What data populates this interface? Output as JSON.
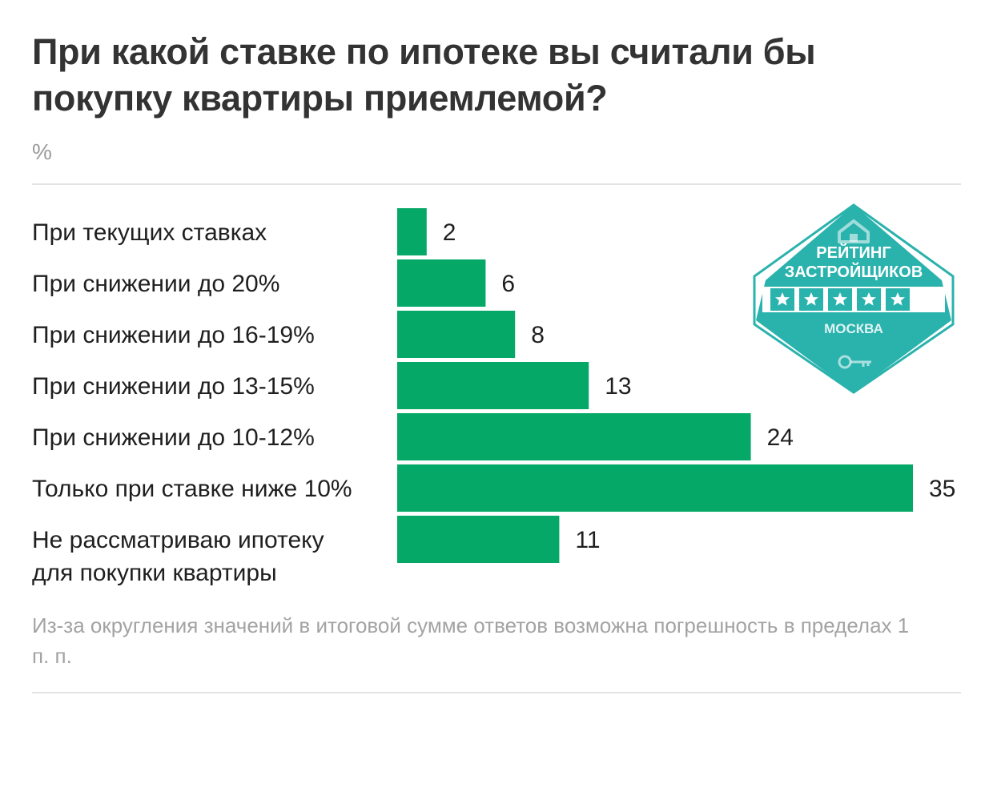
{
  "header": {
    "title": "При какой ставке по ипотеке вы считали бы покупку квартиры приемлемой?",
    "unit": "%"
  },
  "chart_data": {
    "type": "bar",
    "orientation": "horizontal",
    "categories": [
      [
        "При текущих ставках"
      ],
      [
        "При снижении до 20%"
      ],
      [
        "При снижении до 16-19%"
      ],
      [
        "При снижении до 13-15%"
      ],
      [
        "При снижении до 10-12%"
      ],
      [
        "Только при ставке ниже 10%"
      ],
      [
        "Не рассматриваю ипотеку",
        "для покупки квартиры"
      ]
    ],
    "values": [
      2,
      6,
      8,
      13,
      24,
      35,
      11
    ],
    "title": "При какой ставке по ипотеке вы считали бы покупку квартиры приемлемой?",
    "unit": "%",
    "xlim": [
      0,
      35
    ],
    "grid": false,
    "legend": "none",
    "bar_color": "#05a867"
  },
  "footnote": "Из-за округления значений в итоговой сумме ответов возможна погрешность в пределах 1 п. п.",
  "badge": {
    "line1": "РЕЙТИНГ",
    "line2": "ЗАСТРОЙЩИКОВ",
    "city": "МОСКВА",
    "stars": 5,
    "color": "#2ab2ad",
    "icons": [
      "house-icon",
      "star-icon",
      "key-icon"
    ]
  }
}
